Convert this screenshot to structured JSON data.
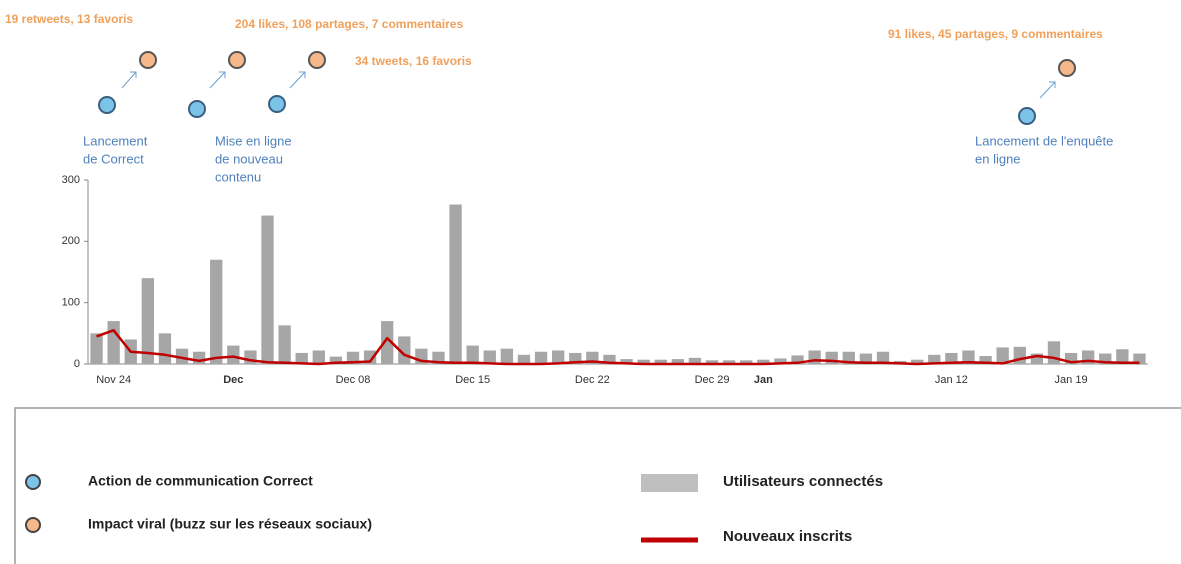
{
  "chart_data": {
    "type": "bar",
    "categories": [
      null,
      "Nov 24",
      null,
      null,
      null,
      null,
      null,
      null,
      "Dec",
      null,
      null,
      null,
      null,
      null,
      null,
      "Dec 08",
      null,
      null,
      null,
      null,
      null,
      null,
      "Dec 15",
      null,
      null,
      null,
      null,
      null,
      null,
      "Dec 22",
      null,
      null,
      null,
      null,
      null,
      null,
      "Dec 29",
      null,
      null,
      "Jan",
      null,
      null,
      null,
      null,
      null,
      null,
      null,
      null,
      null,
      null,
      "Jan 12",
      null,
      null,
      null,
      null,
      null,
      null,
      "Jan 19",
      null,
      null,
      null,
      null
    ],
    "series": [
      {
        "name": "Utilisateurs connectés",
        "type": "bar",
        "color": "#a6a6a6",
        "values": [
          50,
          70,
          40,
          140,
          50,
          25,
          20,
          170,
          30,
          22,
          242,
          63,
          18,
          22,
          12,
          20,
          22,
          70,
          45,
          25,
          20,
          260,
          30,
          22,
          25,
          15,
          20,
          22,
          18,
          20,
          15,
          8,
          7,
          7,
          8,
          10,
          6,
          6,
          6,
          7,
          9,
          14,
          22,
          20,
          20,
          17,
          20,
          5,
          7,
          15,
          18,
          22,
          13,
          27,
          28,
          17,
          37,
          18,
          22,
          17,
          24,
          17
        ]
      },
      {
        "name": "Nouveaux inscrits",
        "type": "line",
        "color": "#c00000",
        "values": [
          45,
          55,
          20,
          18,
          15,
          10,
          5,
          10,
          12,
          6,
          3,
          2,
          1,
          0,
          2,
          3,
          4,
          42,
          15,
          5,
          3,
          2,
          2,
          1,
          0,
          0,
          0,
          1,
          3,
          4,
          2,
          1,
          0,
          0,
          0,
          0,
          0,
          0,
          0,
          0,
          1,
          2,
          6,
          5,
          3,
          2,
          2,
          1,
          0,
          1,
          2,
          3,
          2,
          1,
          8,
          13,
          10,
          3,
          5,
          3,
          2,
          2
        ]
      }
    ],
    "ylim": [
      0,
      300
    ],
    "yticks": [
      0,
      100,
      200,
      300
    ],
    "annotations": {
      "viral": [
        "19 retweets, 13 favoris",
        "204 likes, 108 partages, 7 commentaires",
        "34 tweets, 16 favoris",
        "91 likes, 45 partages, 9 commentaires"
      ],
      "actions": [
        [
          "Lancement",
          "de Correct"
        ],
        [
          "Mise en ligne",
          "de nouveau",
          "contenu"
        ],
        [
          "Lancement de l'enquête",
          "en ligne"
        ]
      ]
    },
    "markers_legend": [
      {
        "label": "Action de communication Correct",
        "color": "#7cc3e8"
      },
      {
        "label": "Impact viral (buzz sur les réseaux sociaux)",
        "color": "#f6b88a"
      }
    ]
  }
}
